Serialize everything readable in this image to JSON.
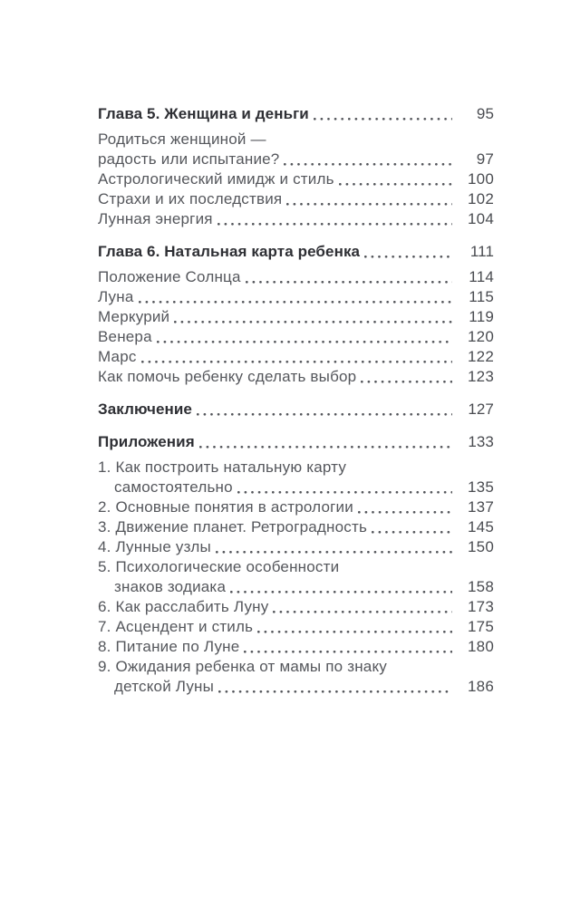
{
  "colors": {
    "page_background": "#ffffff",
    "heading_text": "#2e2f34",
    "body_text": "#55575c",
    "page_number_text": "#4a4c51",
    "dot_leader": "#53555a"
  },
  "toc": {
    "sections": [
      {
        "heading": {
          "text": "Глава 5. Женщина и деньги",
          "page": "95"
        },
        "entries": [
          {
            "line1": "Родиться женщиной —",
            "line2": "радость или испытание?",
            "page": "97",
            "indent2": false
          },
          {
            "line1": "Астрологический имидж и стиль",
            "page": "100"
          },
          {
            "line1": "Страхи и их последствия",
            "page": "102"
          },
          {
            "line1": "Лунная энергия",
            "page": "104"
          }
        ]
      },
      {
        "heading": {
          "text": "Глава 6. Натальная карта ребенка",
          "page": "111"
        },
        "entries": [
          {
            "line1": "Положение Солнца",
            "page": "114"
          },
          {
            "line1": "Луна",
            "page": "115"
          },
          {
            "line1": "Меркурий",
            "page": "119"
          },
          {
            "line1": "Венера",
            "page": "120"
          },
          {
            "line1": "Марс",
            "page": "122"
          },
          {
            "line1": "Как помочь ребенку сделать выбор",
            "page": "123"
          }
        ]
      },
      {
        "heading": {
          "text": "Заключение",
          "page": "127"
        },
        "entries": []
      },
      {
        "heading": {
          "text": "Приложения",
          "page": "133"
        },
        "entries": [
          {
            "line1": "1. Как построить натальную карту",
            "line2": "самостоятельно",
            "page": "135",
            "indent2": true
          },
          {
            "line1": "2. Основные понятия в астрологии",
            "page": "137"
          },
          {
            "line1": "3. Движение планет. Ретроградность",
            "page": "145"
          },
          {
            "line1": "4. Лунные узлы",
            "page": "150"
          },
          {
            "line1": "5. Психологические особенности",
            "line2": "знаков зодиака",
            "page": "158",
            "indent2": true
          },
          {
            "line1": "6. Как расслабить Луну",
            "page": "173"
          },
          {
            "line1": "7. Асцендент и стиль",
            "page": "175"
          },
          {
            "line1": "8. Питание по Луне",
            "page": "180"
          },
          {
            "line1": "9. Ожидания ребенка от мамы по знаку",
            "line2": "детской Луны",
            "page": "186",
            "indent2": true
          }
        ]
      }
    ]
  }
}
